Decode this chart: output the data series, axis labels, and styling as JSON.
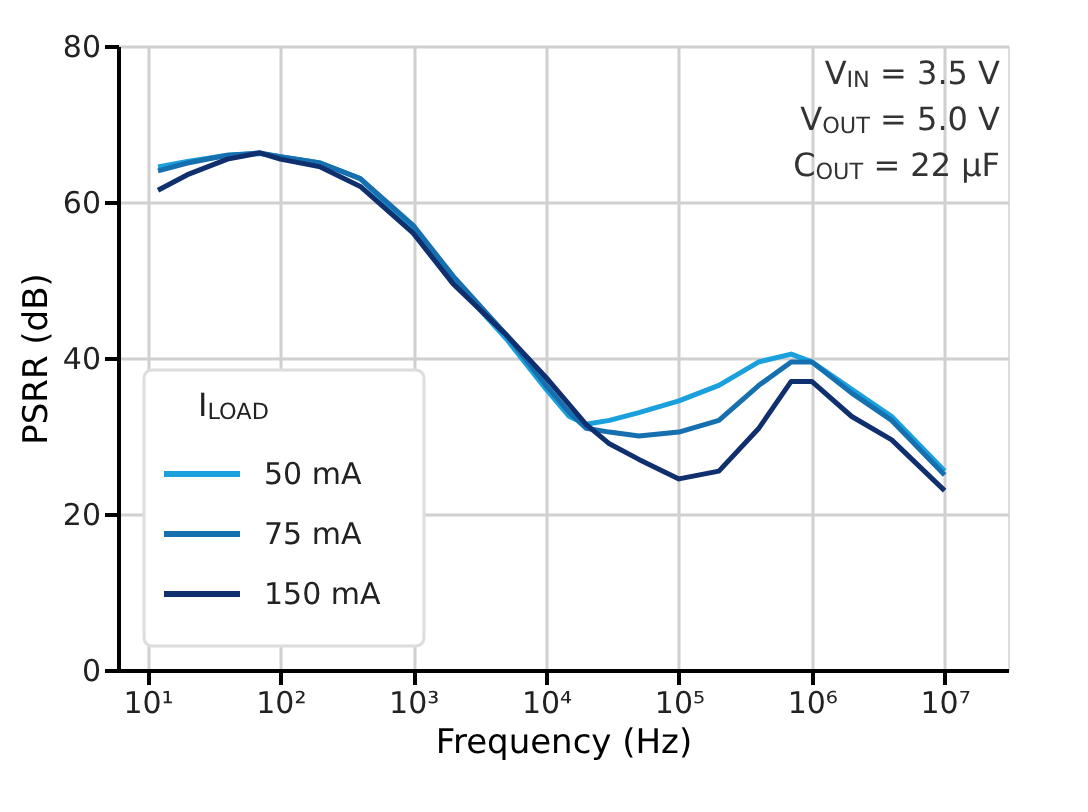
{
  "chart_data": {
    "type": "line",
    "xlabel": "Frequency (Hz)",
    "ylabel": "PSRR (dB)",
    "legend_title": "I$_{LOAD}$",
    "annotations": [
      "V$_{IN}$ = 3.5 V",
      "V$_{OUT}$ = 5.0 V",
      "C$_{OUT}$ = 22 µF"
    ],
    "x": [
      12,
      20,
      40,
      70,
      100,
      200,
      400,
      1000,
      2000,
      5000,
      10000,
      15000,
      20000,
      30000,
      50000,
      100000,
      200000,
      400000,
      700000,
      1000000,
      2000000,
      4000000,
      10000000
    ],
    "series": [
      {
        "name": "50 mA",
        "color": "#1aa0dc",
        "values": [
          64.5,
          65.2,
          66,
          66.2,
          65.8,
          65,
          63,
          56.5,
          50,
          42.5,
          36,
          32.5,
          31.5,
          32,
          33,
          34.5,
          36.5,
          39.5,
          40.5,
          39.5,
          36,
          32.5,
          25.5
        ]
      },
      {
        "name": "75 mA",
        "color": "#1670b0",
        "values": [
          64,
          65,
          66,
          66.3,
          65.8,
          65,
          63,
          57,
          50.5,
          43,
          36.5,
          33,
          31,
          30.5,
          30,
          30.5,
          32,
          36.5,
          39.5,
          39.5,
          35.5,
          32,
          25
        ]
      },
      {
        "name": "150 mA",
        "color": "#0f2f6e",
        "values": [
          61.5,
          63.5,
          65.5,
          66.3,
          65.5,
          64.5,
          62,
          56,
          49.5,
          43,
          37.5,
          34,
          31.5,
          29,
          27,
          24.5,
          25.5,
          31,
          37,
          37,
          32.5,
          29.5,
          23
        ]
      }
    ],
    "log": "x",
    "xlim": [
      6,
      30000000
    ],
    "xticks": [
      {
        "value": 10,
        "label": "10¹"
      },
      {
        "value": 100,
        "label": "10²"
      },
      {
        "value": 1000,
        "label": "10³"
      },
      {
        "value": 10000,
        "label": "10⁴"
      },
      {
        "value": 100000,
        "label": "10⁵"
      },
      {
        "value": 1000000,
        "label": "10⁶"
      },
      {
        "value": 10000000,
        "label": "10⁷"
      }
    ],
    "ylim": [
      0,
      80
    ],
    "yticks": [
      0,
      20,
      40,
      60,
      80
    ],
    "grid": true,
    "legend": "bottom left",
    "line_style": "solid"
  }
}
